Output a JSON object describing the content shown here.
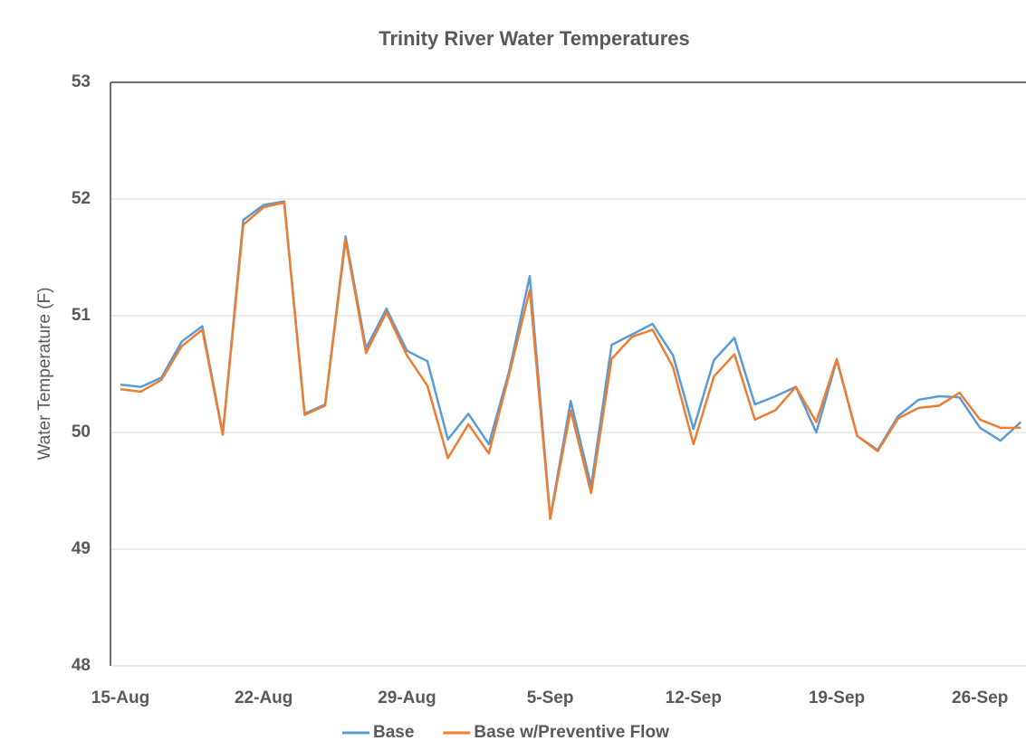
{
  "chart_data": {
    "type": "line",
    "title": "Trinity River Water Temperatures",
    "y_label": "Water Temperature (F)",
    "categories": [
      "15-Aug",
      null,
      null,
      null,
      null,
      null,
      null,
      "22-Aug",
      null,
      null,
      null,
      null,
      null,
      null,
      "29-Aug",
      null,
      null,
      null,
      null,
      null,
      null,
      "5-Sep",
      null,
      null,
      null,
      null,
      null,
      null,
      "12-Sep",
      null,
      null,
      null,
      null,
      null,
      null,
      "19-Sep",
      null,
      null,
      null,
      null,
      null,
      null,
      "26-Sep",
      null,
      null
    ],
    "series": [
      {
        "name": "Base",
        "color": "#5b9bd5",
        "values": [
          50.41,
          50.39,
          50.47,
          50.78,
          50.91,
          49.99,
          51.82,
          51.95,
          51.98,
          50.16,
          50.24,
          51.68,
          50.72,
          51.06,
          50.7,
          50.61,
          49.94,
          50.16,
          49.9,
          50.53,
          51.34,
          49.27,
          50.27,
          49.54,
          50.75,
          50.84,
          50.93,
          50.66,
          50.03,
          50.62,
          50.81,
          50.24,
          50.31,
          50.39,
          50.0,
          50.62,
          49.97,
          49.85,
          50.14,
          50.28,
          50.31,
          50.3,
          50.04,
          49.93,
          50.09
        ]
      },
      {
        "name": "Base w/Preventive Flow",
        "color": "#ed7d31",
        "values": [
          50.37,
          50.35,
          50.45,
          50.74,
          50.88,
          49.98,
          51.78,
          51.93,
          51.97,
          50.15,
          50.23,
          51.65,
          50.68,
          51.03,
          50.66,
          50.4,
          49.78,
          50.07,
          49.82,
          50.5,
          51.22,
          49.26,
          50.19,
          49.48,
          50.63,
          50.82,
          50.88,
          50.56,
          49.9,
          50.48,
          50.67,
          50.11,
          50.19,
          50.39,
          50.09,
          50.63,
          49.97,
          49.84,
          50.12,
          50.21,
          50.23,
          50.34,
          50.11,
          50.04,
          50.04
        ]
      }
    ],
    "ylim": [
      48,
      53
    ],
    "yticks": [
      48,
      49,
      50,
      51,
      52,
      53
    ],
    "grid": true,
    "legend": "bottom"
  }
}
